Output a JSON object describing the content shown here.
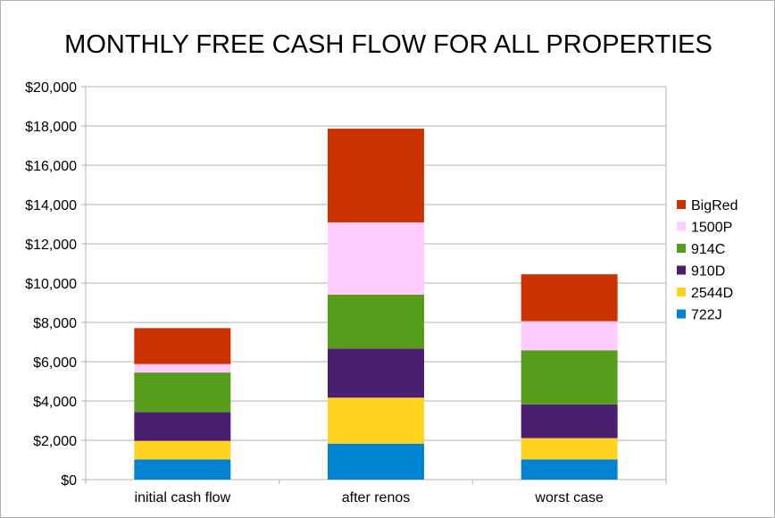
{
  "chart_data": {
    "type": "bar",
    "stacked": true,
    "title": "MONTHLY FREE CASH FLOW FOR ALL PROPERTIES",
    "xlabel": "",
    "ylabel": "",
    "ylim": [
      0,
      20000
    ],
    "ytick_step": 2000,
    "ytick_labels": [
      "$0",
      "$2,000",
      "$4,000",
      "$6,000",
      "$8,000",
      "$10,000",
      "$12,000",
      "$14,000",
      "$16,000",
      "$18,000",
      "$20,000"
    ],
    "grid": true,
    "legend_position": "right",
    "categories": [
      "initial cash flow",
      "after renos",
      "worst case"
    ],
    "series": [
      {
        "name": "722J",
        "color": "#0083d1",
        "values": [
          1030,
          1830,
          1030
        ]
      },
      {
        "name": "2544D",
        "color": "#ffd320",
        "values": [
          940,
          2340,
          1080
        ]
      },
      {
        "name": "910D",
        "color": "#4b1f6f",
        "values": [
          1470,
          2500,
          1720
        ]
      },
      {
        "name": "914C",
        "color": "#579d1c",
        "values": [
          2010,
          2740,
          2750
        ]
      },
      {
        "name": "1500P",
        "color": "#ffccff",
        "values": [
          430,
          3680,
          1480
        ]
      },
      {
        "name": "BigRed",
        "color": "#cc3300",
        "values": [
          1830,
          4770,
          2390
        ]
      }
    ]
  }
}
